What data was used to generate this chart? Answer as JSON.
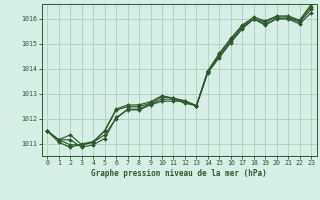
{
  "title": "Graphe pression niveau de la mer (hPa)",
  "background_color": "#d6eee6",
  "grid_color": "#b0d4c4",
  "line_color": "#2d5a2d",
  "xlim": [
    -0.5,
    23.5
  ],
  "ylim": [
    1010.5,
    1016.6
  ],
  "yticks": [
    1011,
    1012,
    1013,
    1014,
    1015,
    1016
  ],
  "xticks": [
    0,
    1,
    2,
    3,
    4,
    5,
    6,
    7,
    8,
    9,
    10,
    11,
    12,
    13,
    14,
    15,
    16,
    17,
    18,
    19,
    20,
    21,
    22,
    23
  ],
  "series1": [
    1011.5,
    1011.15,
    1011.15,
    1010.85,
    1010.95,
    1011.2,
    1012.05,
    1012.35,
    1012.35,
    1012.55,
    1012.7,
    1012.7,
    1012.7,
    1012.5,
    1013.85,
    1014.45,
    1015.05,
    1015.6,
    1016.0,
    1015.75,
    1016.0,
    1016.0,
    1015.8,
    1016.25
  ],
  "series2": [
    1011.5,
    1011.15,
    1011.35,
    1010.95,
    1011.05,
    1011.35,
    1012.0,
    1012.38,
    1012.38,
    1012.58,
    1012.78,
    1012.78,
    1012.62,
    1012.52,
    1013.88,
    1014.5,
    1015.1,
    1015.65,
    1016.0,
    1015.8,
    1016.02,
    1016.02,
    1015.88,
    1016.38
  ],
  "series3": [
    1011.5,
    1011.15,
    1010.95,
    1010.95,
    1011.05,
    1011.5,
    1012.35,
    1012.48,
    1012.48,
    1012.62,
    1012.88,
    1012.82,
    1012.68,
    1012.52,
    1013.9,
    1014.58,
    1015.18,
    1015.72,
    1016.0,
    1015.88,
    1016.08,
    1016.08,
    1015.92,
    1016.48
  ],
  "series4": [
    1011.5,
    1011.05,
    1010.85,
    1010.98,
    1011.08,
    1011.52,
    1012.38,
    1012.55,
    1012.55,
    1012.68,
    1012.92,
    1012.82,
    1012.72,
    1012.52,
    1013.92,
    1014.62,
    1015.22,
    1015.75,
    1016.08,
    1015.92,
    1016.12,
    1016.12,
    1015.95,
    1016.58
  ]
}
